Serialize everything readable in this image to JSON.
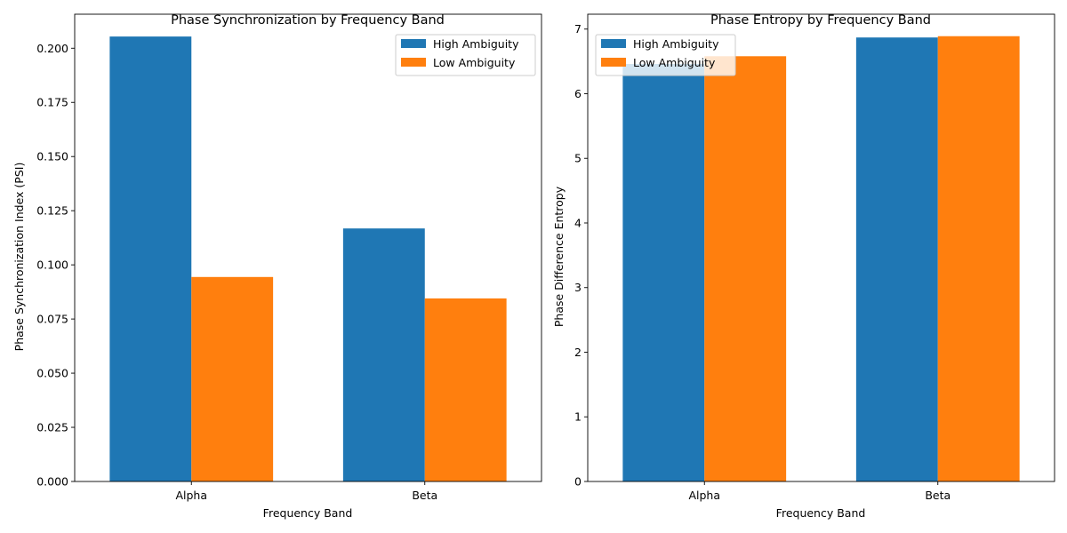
{
  "chart_data": [
    {
      "type": "bar",
      "title": "Phase Synchronization by Frequency Band",
      "xlabel": "Frequency Band",
      "ylabel": "Phase Synchronization Index (PSI)",
      "categories": [
        "Alpha",
        "Beta"
      ],
      "series": [
        {
          "name": "High Ambiguity",
          "values": [
            0.2054,
            0.1168
          ],
          "color": "#1f77b4"
        },
        {
          "name": "Low Ambiguity",
          "values": [
            0.0944,
            0.0845
          ],
          "color": "#ff7f0e"
        }
      ],
      "ylim": [
        0,
        0.2157
      ],
      "yticks": [
        0.0,
        0.025,
        0.05,
        0.075,
        0.1,
        0.125,
        0.15,
        0.175,
        0.2
      ],
      "ytick_labels": [
        "0.000",
        "0.025",
        "0.050",
        "0.075",
        "0.100",
        "0.125",
        "0.150",
        "0.175",
        "0.200"
      ],
      "legend": "top-right",
      "grid": false
    },
    {
      "type": "bar",
      "title": "Phase Entropy by Frequency Band",
      "xlabel": "Frequency Band",
      "ylabel": "Phase Difference Entropy",
      "categories": [
        "Alpha",
        "Beta"
      ],
      "series": [
        {
          "name": "High Ambiguity",
          "values": [
            6.46,
            6.87
          ],
          "color": "#1f77b4"
        },
        {
          "name": "Low Ambiguity",
          "values": [
            6.58,
            6.89
          ],
          "color": "#ff7f0e"
        }
      ],
      "ylim": [
        0,
        7.23
      ],
      "yticks": [
        0,
        1,
        2,
        3,
        4,
        5,
        6,
        7
      ],
      "ytick_labels": [
        "0",
        "1",
        "2",
        "3",
        "4",
        "5",
        "6",
        "7"
      ],
      "legend": "top-left",
      "grid": false
    }
  ]
}
